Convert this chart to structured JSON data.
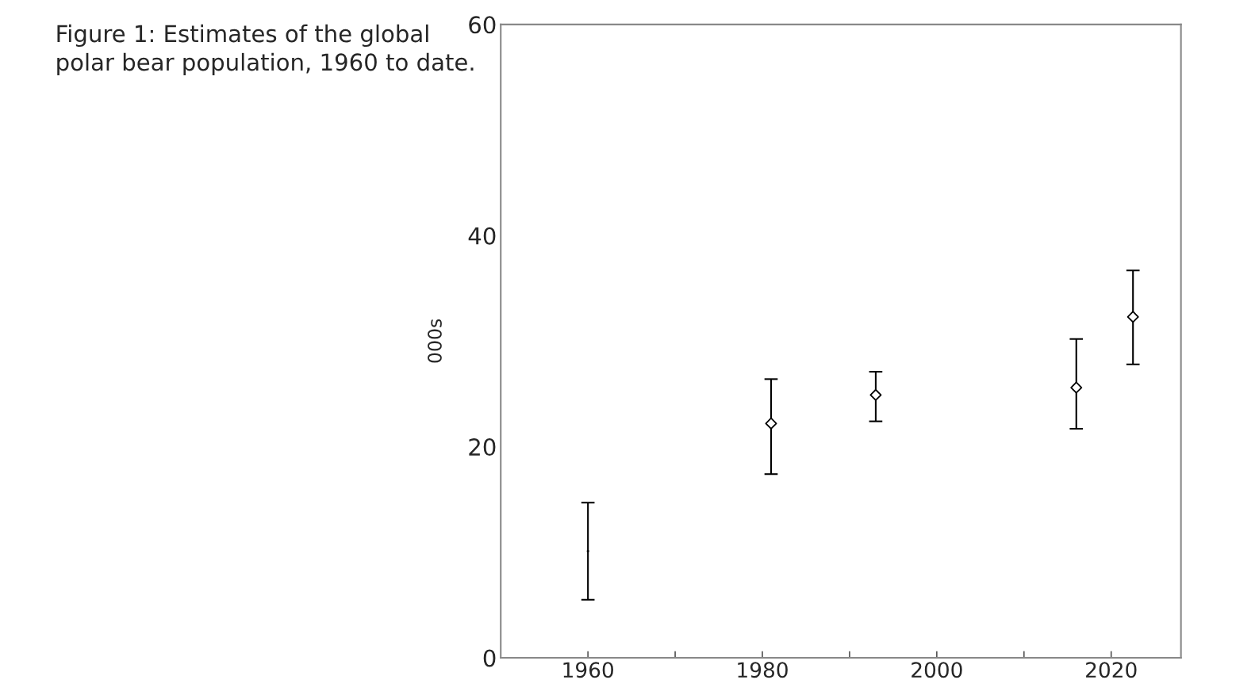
{
  "chart_data": {
    "type": "scatter",
    "title": "Figure 1: Estimates of the global polar bear population, 1960 to date.",
    "ylabel": "000s",
    "series": [
      {
        "color": "#000000",
        "marker": "none",
        "x": [
          1960
        ],
        "values": [
          10.1
        ],
        "errors": [
          [
            5.5,
            14.7
          ]
        ]
      },
      {
        "color": "#000000",
        "marker": "diamond",
        "x": [
          1981,
          1993,
          2016,
          2022.5
        ],
        "values": [
          22.2,
          24.9,
          25.6,
          32.3
        ],
        "errors": [
          [
            17.4,
            26.4
          ],
          [
            22.4,
            27.1
          ],
          [
            21.7,
            30.2
          ],
          [
            27.8,
            36.7
          ]
        ]
      }
    ],
    "grid": false,
    "xlim": [
      1950,
      2028
    ],
    "xticks": [
      1960,
      {
        "value": 1970,
        "label": null
      },
      1980,
      {
        "value": 1990,
        "label": null
      },
      2000,
      {
        "value": 2010,
        "label": null
      },
      2020
    ],
    "ylim": [
      0,
      60
    ],
    "yticks": [
      0,
      20,
      40,
      60
    ]
  }
}
